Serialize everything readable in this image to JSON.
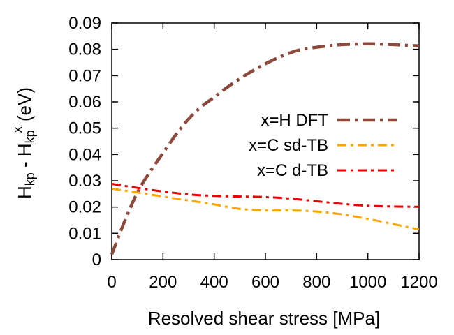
{
  "chart_data": {
    "type": "line",
    "xlabel": "Resolved shear stress [MPa]",
    "ylabel_parts": {
      "h1": "H",
      "sub1": "kp",
      "mid": " - H",
      "sub2": "kp",
      "sup2": "x",
      "unit": " (eV)"
    },
    "xlim": [
      0,
      1200
    ],
    "ylim": [
      0,
      0.09
    ],
    "x_ticks": [
      0,
      200,
      400,
      600,
      800,
      1000,
      1200
    ],
    "y_ticks": [
      0,
      0.01,
      0.02,
      0.03,
      0.04,
      0.05,
      0.06,
      0.07,
      0.08,
      0.09
    ],
    "x_tick_labels": [
      "0",
      "200",
      "400",
      "600",
      "800",
      "1000",
      "1200"
    ],
    "y_tick_labels": [
      "0",
      "0.01",
      "0.02",
      "0.03",
      "0.04",
      "0.05",
      "0.06",
      "0.07",
      "0.08",
      "0.09"
    ],
    "grid": false,
    "legend_position": "right-middle",
    "series": [
      {
        "name": "x=H DFT",
        "color": "#8b4a3c",
        "dash": "long-dash-dot",
        "x": [
          0,
          50,
          100,
          150,
          200,
          250,
          300,
          350,
          400,
          450,
          500,
          550,
          600,
          650,
          700,
          750,
          800,
          850,
          900,
          950,
          1000,
          1050,
          1100,
          1150,
          1200
        ],
        "y": [
          0.002,
          0.0145,
          0.0255,
          0.0335,
          0.0405,
          0.0475,
          0.0535,
          0.0582,
          0.0618,
          0.0655,
          0.0688,
          0.0718,
          0.0745,
          0.0768,
          0.0788,
          0.0801,
          0.0808,
          0.0814,
          0.0818,
          0.082,
          0.0821,
          0.082,
          0.0818,
          0.0815,
          0.0813
        ]
      },
      {
        "name": "x=C sd-TB",
        "color": "#ffa500",
        "dash": "dash-dot",
        "x": [
          0,
          100,
          200,
          300,
          400,
          500,
          600,
          700,
          800,
          900,
          1000,
          1100,
          1200
        ],
        "y": [
          0.027,
          0.0255,
          0.024,
          0.0225,
          0.021,
          0.0193,
          0.0187,
          0.0187,
          0.0183,
          0.0172,
          0.0155,
          0.0135,
          0.0115
        ]
      },
      {
        "name": "x=C d-TB",
        "color": "#ee0000",
        "dash": "dash-dot",
        "x": [
          0,
          100,
          200,
          300,
          400,
          500,
          600,
          700,
          800,
          900,
          1000,
          1100,
          1200
        ],
        "y": [
          0.0288,
          0.0273,
          0.0259,
          0.0248,
          0.0242,
          0.024,
          0.0238,
          0.0232,
          0.0222,
          0.0212,
          0.0205,
          0.0202,
          0.0201
        ]
      }
    ]
  }
}
